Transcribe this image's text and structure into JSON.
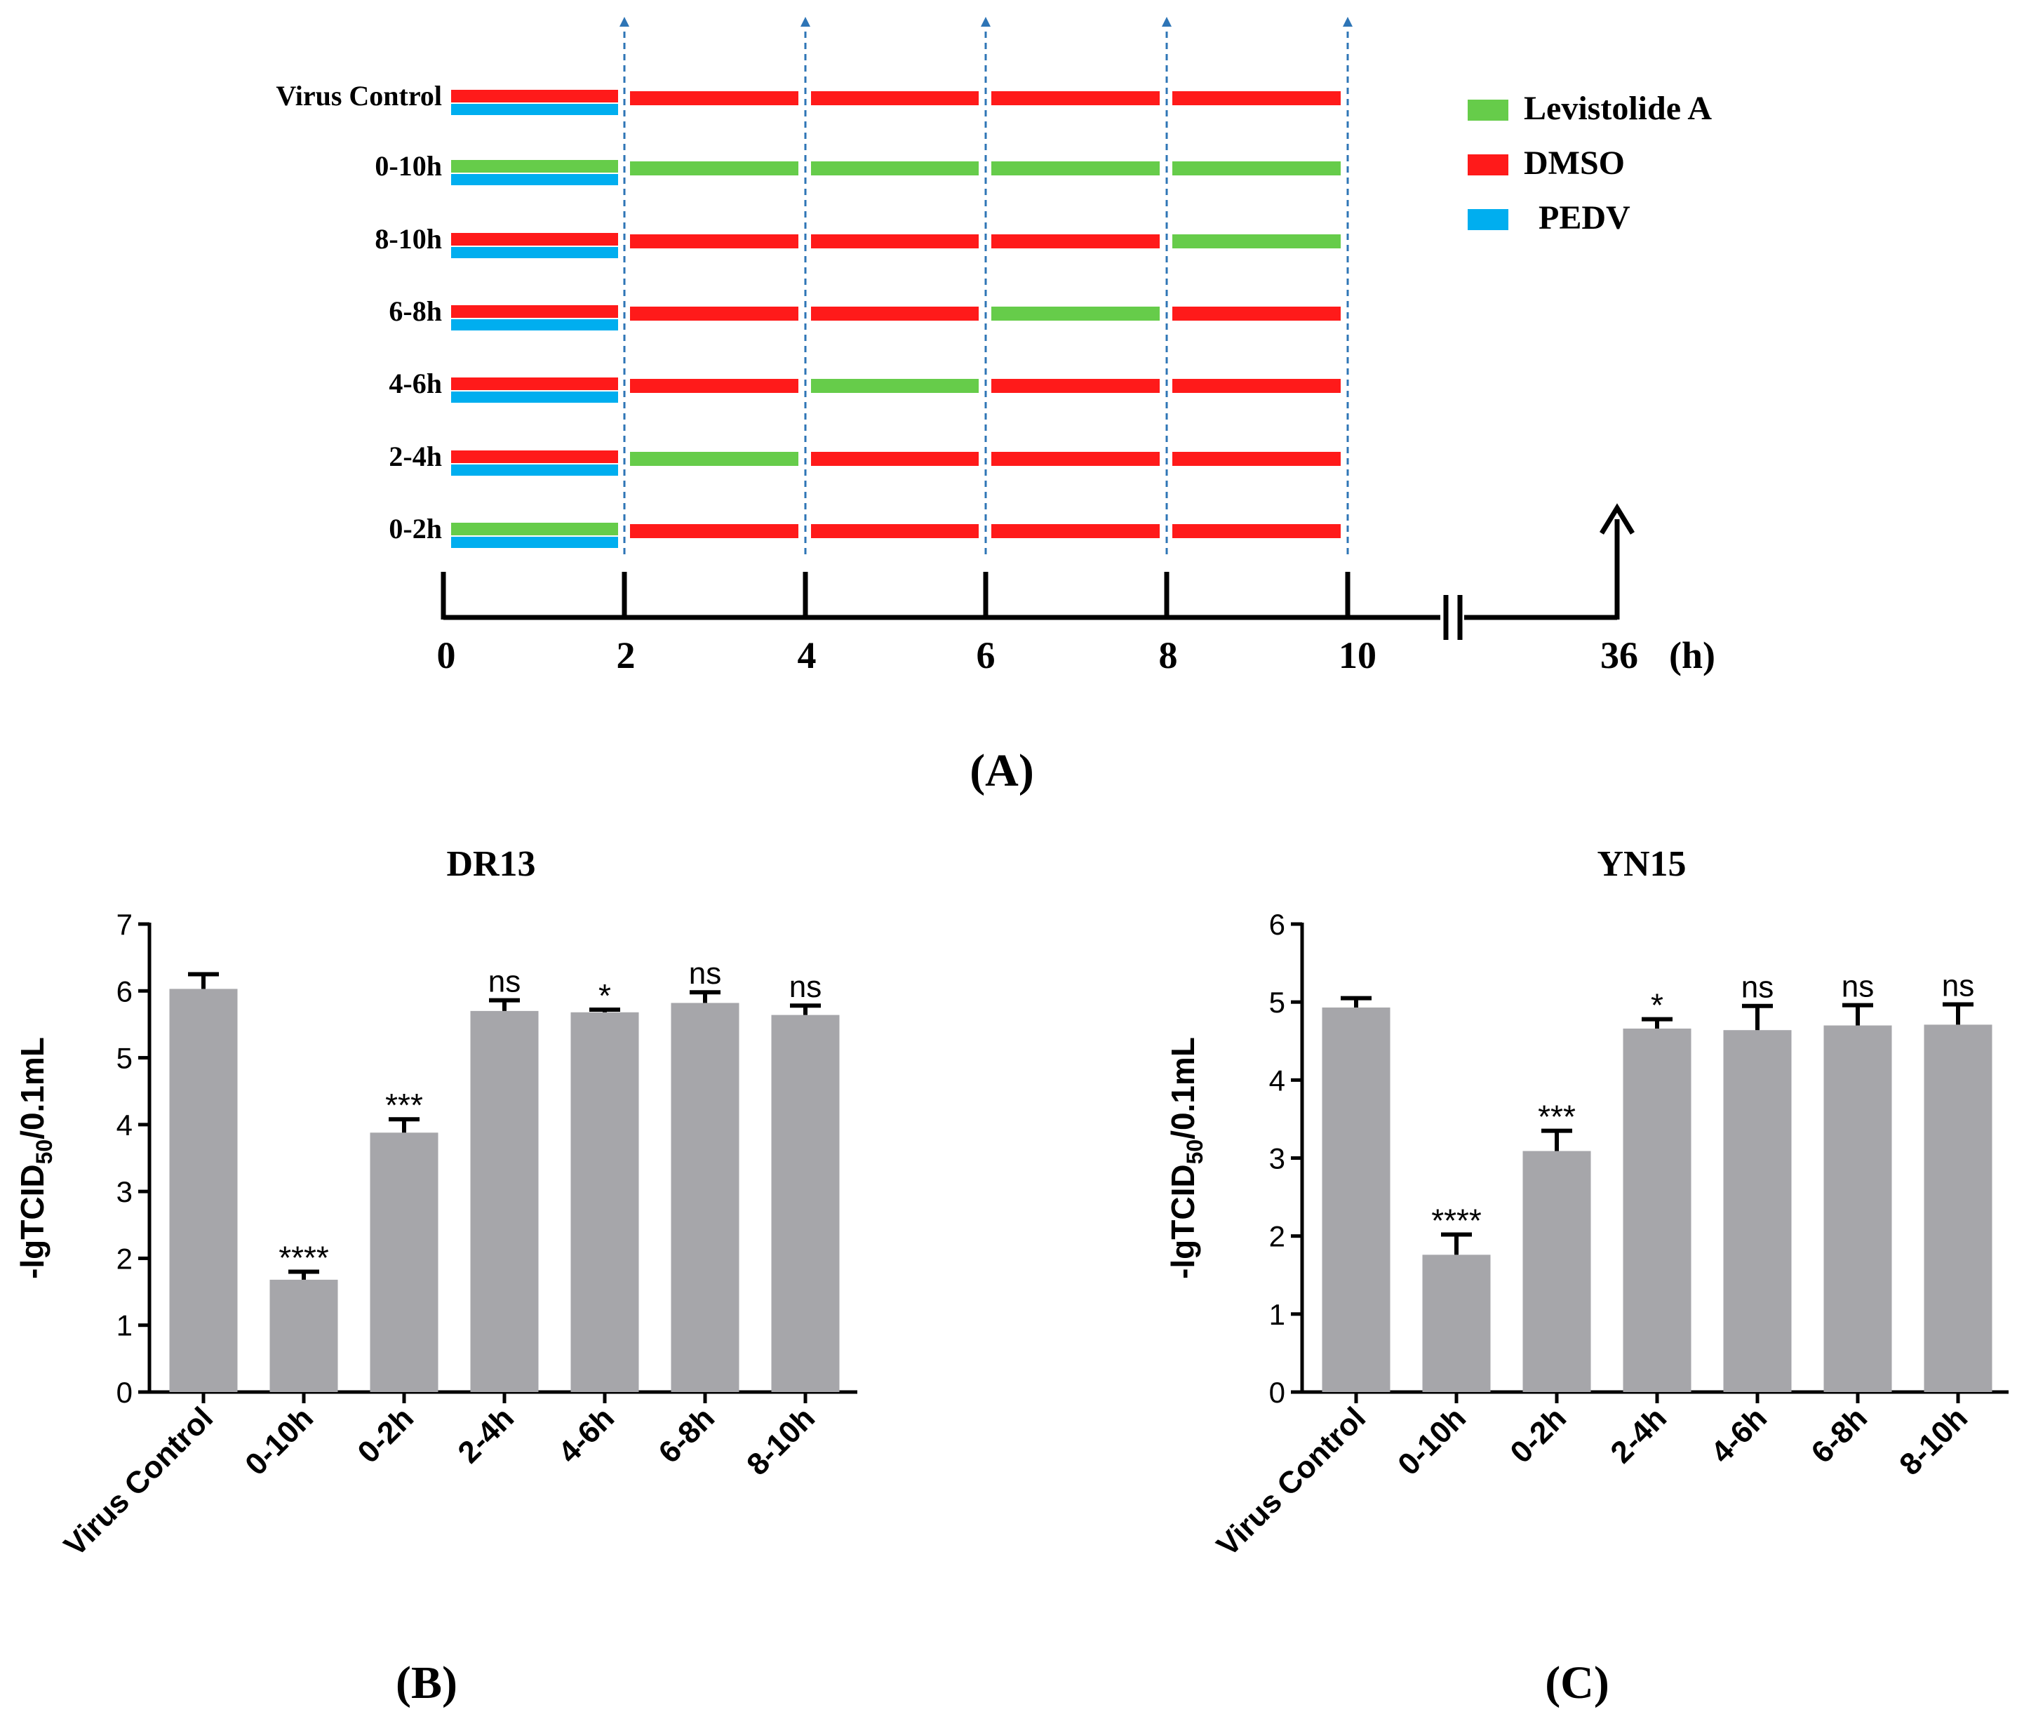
{
  "panels": {
    "a": {
      "label": "(A)"
    },
    "b": {
      "label": "(B)"
    },
    "c": {
      "label": "(C)"
    }
  },
  "colors": {
    "levistolide": "#66CC4A",
    "dmso": "#FF1A1A",
    "pedv": "#00AEEF",
    "bar": "#A6A6AA",
    "arrow": "#2E75B6"
  },
  "timeline": {
    "unit_label": "(h)",
    "ticks": [
      "0",
      "2",
      "4",
      "6",
      "8",
      "10",
      "36"
    ],
    "legend": [
      {
        "label": "Levistolide A",
        "color_key": "levistolide"
      },
      {
        "label": "DMSO",
        "color_key": "dmso"
      },
      {
        "label": "PEDV",
        "color_key": "pedv"
      }
    ],
    "rows": [
      {
        "label": "Virus Control",
        "first": "dmso",
        "segments": [
          "dmso",
          "dmso",
          "dmso",
          "dmso"
        ]
      },
      {
        "label": "0-10h",
        "first": "levistolide",
        "segments": [
          "levistolide",
          "levistolide",
          "levistolide",
          "levistolide"
        ]
      },
      {
        "label": "8-10h",
        "first": "dmso",
        "segments": [
          "dmso",
          "dmso",
          "dmso",
          "levistolide"
        ]
      },
      {
        "label": "6-8h",
        "first": "dmso",
        "segments": [
          "dmso",
          "dmso",
          "levistolide",
          "dmso"
        ]
      },
      {
        "label": "4-6h",
        "first": "dmso",
        "segments": [
          "dmso",
          "levistolide",
          "dmso",
          "dmso"
        ]
      },
      {
        "label": "2-4h",
        "first": "dmso",
        "segments": [
          "levistolide",
          "dmso",
          "dmso",
          "dmso"
        ]
      },
      {
        "label": "0-2h",
        "first": "levistolide",
        "segments": [
          "dmso",
          "dmso",
          "dmso",
          "dmso"
        ]
      }
    ]
  },
  "chart_data": [
    {
      "type": "bar",
      "title": "DR13",
      "ylabel_main": "-lgTCID",
      "ylabel_sub": "50",
      "ylabel_tail": "/0.1mL",
      "ylim": [
        0,
        7
      ],
      "yticks": [
        "0",
        "1",
        "2",
        "3",
        "4",
        "5",
        "6",
        "7"
      ],
      "categories": [
        "Virus Control",
        "0-10h",
        "0-2h",
        "2-4h",
        "4-6h",
        "6-8h",
        "8-10h"
      ],
      "values": [
        6.03,
        1.68,
        3.88,
        5.7,
        5.68,
        5.82,
        5.64
      ],
      "errors": [
        0.22,
        0.12,
        0.2,
        0.16,
        0.04,
        0.16,
        0.14
      ],
      "significance": [
        "",
        "****",
        "***",
        "ns",
        "*",
        "ns",
        "ns"
      ]
    },
    {
      "type": "bar",
      "title": "YN15",
      "ylabel_main": "-lgTCID",
      "ylabel_sub": "50",
      "ylabel_tail": "/0.1mL",
      "ylim": [
        0,
        6
      ],
      "yticks": [
        "0",
        "1",
        "2",
        "3",
        "4",
        "5",
        "6"
      ],
      "categories": [
        "Virus Control",
        "0-10h",
        "0-2h",
        "2-4h",
        "4-6h",
        "6-8h",
        "8-10h"
      ],
      "values": [
        4.93,
        1.76,
        3.09,
        4.66,
        4.64,
        4.7,
        4.71
      ],
      "errors": [
        0.12,
        0.26,
        0.26,
        0.12,
        0.31,
        0.26,
        0.26
      ],
      "significance": [
        "",
        "****",
        "***",
        "*",
        "ns",
        "ns",
        "ns"
      ]
    }
  ]
}
